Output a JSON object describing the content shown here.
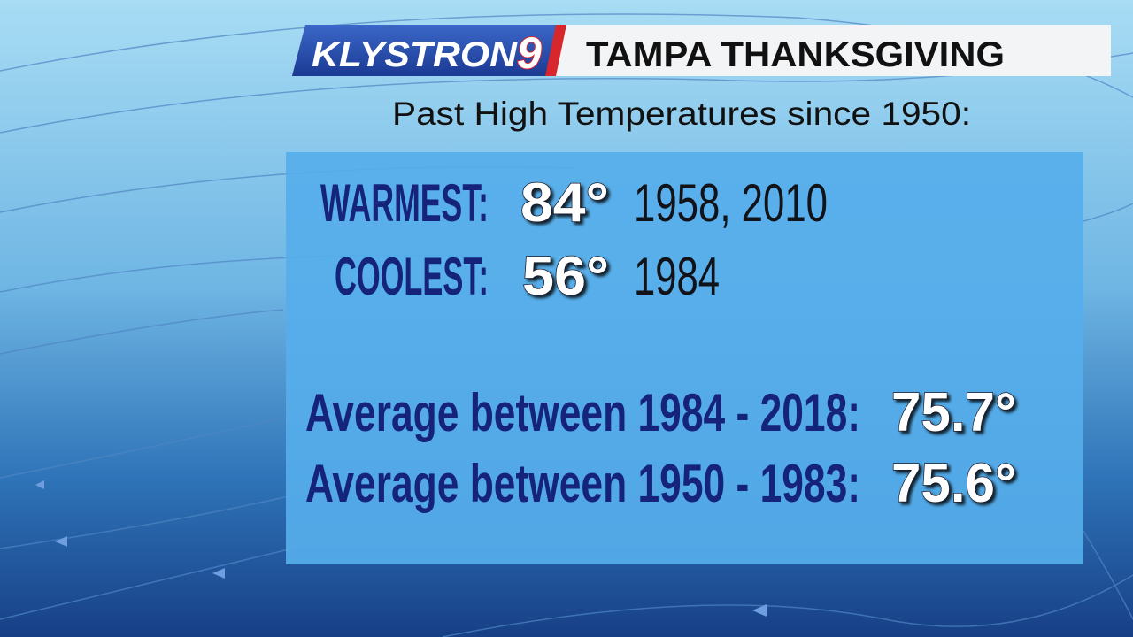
{
  "header": {
    "logo": {
      "name": "KLYSTRON",
      "number": "9"
    },
    "title": "TAMPA THANKSGIVING"
  },
  "subtitle": "Past High Temperatures since 1950:",
  "records": [
    {
      "label": "WARMEST:",
      "temperature": "84°",
      "years": "1958, 2010"
    },
    {
      "label": "COOLEST:",
      "temperature": "56°",
      "years": "1984"
    }
  ],
  "averages": [
    {
      "label": "Average between 1984 - 2018:",
      "temperature": "75.7°"
    },
    {
      "label": "Average between 1950 - 1983:",
      "temperature": "75.6°"
    }
  ]
}
